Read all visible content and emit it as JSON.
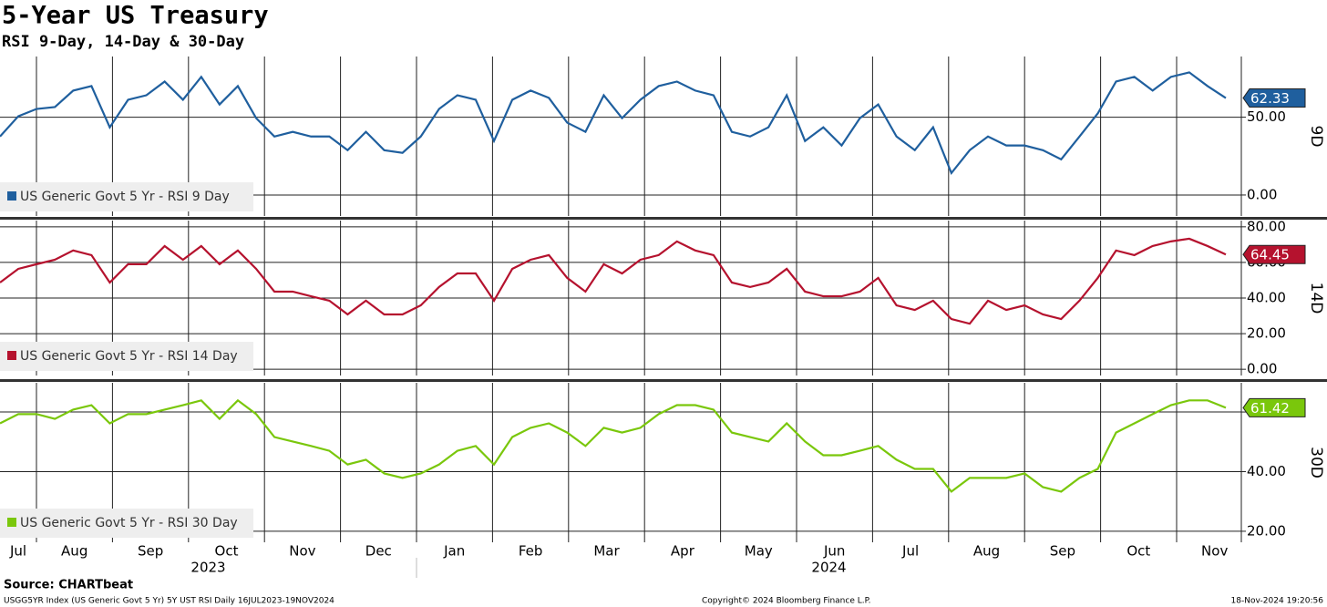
{
  "header": {
    "title": "5-Year US Treasury",
    "subtitle": "RSI 9-Day, 14-Day & 30-Day"
  },
  "x_axis": {
    "months": [
      "Jul",
      "Aug",
      "Sep",
      "Oct",
      "Nov",
      "Dec",
      "Jan",
      "Feb",
      "Mar",
      "Apr",
      "May",
      "Jun",
      "Jul",
      "Aug",
      "Sep",
      "Oct",
      "Nov"
    ],
    "years": [
      "2023",
      "2024"
    ]
  },
  "chart_data": [
    {
      "type": "line",
      "y_label": "9D",
      "ylim": [
        -13.5,
        89
      ],
      "yticks": [
        {
          "value": 0,
          "label": "0.00"
        },
        {
          "value": 50,
          "label": "50.00"
        }
      ],
      "series": [
        {
          "name": "US Generic Govt 5 Yr - RSI 9 Day",
          "color": "#1f5f9e",
          "values": [
            37.6,
            50.6,
            55.3,
            56.5,
            67.1,
            70,
            43.5,
            61.2,
            64.1,
            72.9,
            61.2,
            75.9,
            58.2,
            70,
            49.4,
            37.6,
            40.6,
            37.6,
            37.6,
            28.8,
            40.6,
            28.8,
            27.1,
            37.6,
            55.3,
            64.1,
            61.2,
            34.7,
            61.2,
            67.1,
            62.4,
            46.5,
            40.6,
            64.1,
            49.4,
            61.2,
            70,
            72.9,
            67.1,
            64.1,
            40.6,
            37.6,
            43.5,
            64.1,
            34.7,
            43.5,
            31.8,
            49.4,
            58.2,
            37.6,
            28.8,
            43.5,
            14.1,
            28.8,
            37.6,
            31.8,
            31.8,
            28.8,
            22.9,
            37.6,
            52.4,
            72.9,
            75.9,
            67.1,
            75.9,
            78.8,
            70,
            62.33
          ]
        }
      ]
    },
    {
      "type": "line",
      "y_label": "14D",
      "ylim": [
        -3.5,
        83.5
      ],
      "yticks": [
        {
          "value": 0,
          "label": "0.00"
        },
        {
          "value": 20,
          "label": "20.00"
        },
        {
          "value": 40,
          "label": "40.00"
        },
        {
          "value": 60,
          "label": "60.00"
        },
        {
          "value": 80,
          "label": "80.00"
        }
      ],
      "series": [
        {
          "name": "US Generic Govt 5 Yr - RSI 14 Day",
          "color": "#b5122e",
          "values": [
            48.7,
            56.4,
            59,
            61.5,
            66.7,
            64.1,
            48.7,
            59,
            59,
            69.2,
            61.5,
            69.2,
            59,
            66.7,
            56.4,
            43.6,
            43.6,
            41,
            38.5,
            30.8,
            38.5,
            30.8,
            30.8,
            35.9,
            46.2,
            53.8,
            53.8,
            38.5,
            56.4,
            61.5,
            64.1,
            51.3,
            43.6,
            59,
            53.8,
            61.5,
            64.1,
            71.8,
            66.7,
            64.1,
            48.7,
            46.2,
            48.7,
            56.4,
            43.6,
            41,
            41,
            43.6,
            51.3,
            35.9,
            33.3,
            38.5,
            28.2,
            25.6,
            38.5,
            33.3,
            35.9,
            30.8,
            28.2,
            38.5,
            51.3,
            66.7,
            64.1,
            69.2,
            71.8,
            73.3,
            69.2,
            64.45
          ]
        }
      ]
    },
    {
      "type": "line",
      "y_label": "30D",
      "ylim": [
        16.3,
        69.8
      ],
      "yticks": [
        {
          "value": 20,
          "label": "20.00"
        },
        {
          "value": 40,
          "label": "40.00"
        },
        {
          "value": 60,
          "label": "60.00"
        }
      ],
      "series": [
        {
          "name": "US Generic Govt 5 Yr - RSI 30 Day",
          "color": "#7ac70c",
          "values": [
            56.2,
            59.3,
            59.3,
            57.7,
            60.8,
            62.3,
            56.2,
            59.3,
            59.3,
            60.8,
            62.3,
            63.9,
            57.7,
            63.9,
            59.3,
            51.6,
            50.1,
            48.6,
            47,
            42.4,
            44,
            39.4,
            37.9,
            39.4,
            42.4,
            47,
            48.6,
            42.4,
            51.6,
            54.7,
            56.2,
            53.1,
            48.6,
            54.7,
            53.1,
            54.7,
            59.3,
            62.3,
            62.3,
            60.8,
            53.1,
            51.6,
            50.1,
            56.2,
            50.1,
            45.5,
            45.5,
            47,
            48.6,
            44,
            40.9,
            40.9,
            33.3,
            37.9,
            37.9,
            37.9,
            39.4,
            34.8,
            33.3,
            37.9,
            40.9,
            53.1,
            56.2,
            59.3,
            62.3,
            63.9,
            63.9,
            61.42
          ]
        }
      ]
    }
  ],
  "footer": {
    "source": "Source: CHARTbeat",
    "ticker": "USGG5YR Index (US Generic Govt 5 Yr) 5Y UST RSI  Daily 16JUL2023-19NOV2024",
    "copyright": "Copyright© 2024 Bloomberg Finance L.P.",
    "timestamp": "18-Nov-2024 19:20:56"
  }
}
